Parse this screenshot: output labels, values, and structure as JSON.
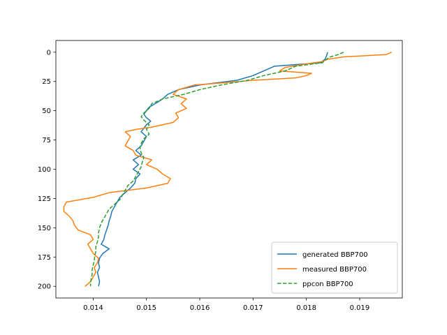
{
  "chart_data": {
    "type": "line",
    "title": "",
    "xlabel": "",
    "ylabel": "",
    "xlim": [
      0.0133,
      0.0198
    ],
    "ylim": [
      210,
      -10
    ],
    "y_inverted": true,
    "grid": false,
    "legend_position": "lower right",
    "x_ticks": [
      0.014,
      0.015,
      0.016,
      0.017,
      0.018,
      0.019
    ],
    "y_ticks": [
      0,
      25,
      50,
      75,
      100,
      125,
      150,
      175,
      200
    ],
    "series": [
      {
        "name": "generated BBP700",
        "color": "#1f77b4",
        "dashed": false,
        "points": [
          [
            0.0184,
            0
          ],
          [
            0.01838,
            3
          ],
          [
            0.01835,
            6
          ],
          [
            0.01827,
            9
          ],
          [
            0.0174,
            12
          ],
          [
            0.0172,
            16
          ],
          [
            0.017,
            20
          ],
          [
            0.0167,
            24
          ],
          [
            0.016,
            28
          ],
          [
            0.0156,
            32
          ],
          [
            0.0154,
            36
          ],
          [
            0.0153,
            40
          ],
          [
            0.0152,
            43
          ],
          [
            0.01505,
            47
          ],
          [
            0.015,
            50
          ],
          [
            0.01495,
            53
          ],
          [
            0.015,
            56
          ],
          [
            0.01508,
            59
          ],
          [
            0.015,
            62
          ],
          [
            0.01495,
            65
          ],
          [
            0.0149,
            68
          ],
          [
            0.015,
            72
          ],
          [
            0.01495,
            76
          ],
          [
            0.0149,
            80
          ],
          [
            0.0148,
            84
          ],
          [
            0.0149,
            88
          ],
          [
            0.01475,
            92
          ],
          [
            0.01485,
            96
          ],
          [
            0.01475,
            100
          ],
          [
            0.01488,
            104
          ],
          [
            0.0148,
            108
          ],
          [
            0.01478,
            112
          ],
          [
            0.0147,
            116
          ],
          [
            0.0146,
            120
          ],
          [
            0.0145,
            124
          ],
          [
            0.01445,
            128
          ],
          [
            0.0144,
            132
          ],
          [
            0.01435,
            136
          ],
          [
            0.01433,
            140
          ],
          [
            0.0143,
            144
          ],
          [
            0.01428,
            148
          ],
          [
            0.01425,
            152
          ],
          [
            0.01422,
            156
          ],
          [
            0.0142,
            160
          ],
          [
            0.01415,
            164
          ],
          [
            0.0143,
            168
          ],
          [
            0.01418,
            172
          ],
          [
            0.01412,
            176
          ],
          [
            0.0141,
            180
          ],
          [
            0.01412,
            184
          ],
          [
            0.01408,
            188
          ],
          [
            0.0141,
            192
          ],
          [
            0.01412,
            196
          ],
          [
            0.0141,
            200
          ]
        ]
      },
      {
        "name": "measured BBP700",
        "color": "#ff7f0e",
        "dashed": false,
        "points": [
          [
            0.0196,
            0
          ],
          [
            0.0195,
            2
          ],
          [
            0.0187,
            4
          ],
          [
            0.0184,
            6
          ],
          [
            0.0183,
            8
          ],
          [
            0.018,
            10
          ],
          [
            0.0176,
            13
          ],
          [
            0.0175,
            16
          ],
          [
            0.0181,
            18
          ],
          [
            0.018,
            20
          ],
          [
            0.0178,
            22
          ],
          [
            0.017,
            24
          ],
          [
            0.0165,
            26
          ],
          [
            0.0159,
            28
          ],
          [
            0.0156,
            32
          ],
          [
            0.0155,
            36
          ],
          [
            0.01575,
            40
          ],
          [
            0.01565,
            44
          ],
          [
            0.01575,
            48
          ],
          [
            0.01555,
            52
          ],
          [
            0.0156,
            56
          ],
          [
            0.0155,
            60
          ],
          [
            0.0153,
            62
          ],
          [
            0.0151,
            64
          ],
          [
            0.0148,
            66
          ],
          [
            0.0146,
            68
          ],
          [
            0.0147,
            72
          ],
          [
            0.01465,
            76
          ],
          [
            0.0146,
            80
          ],
          [
            0.01475,
            84
          ],
          [
            0.0148,
            88
          ],
          [
            0.0151,
            92
          ],
          [
            0.015,
            96
          ],
          [
            0.0152,
            100
          ],
          [
            0.0153,
            104
          ],
          [
            0.01545,
            108
          ],
          [
            0.0154,
            112
          ],
          [
            0.015,
            116
          ],
          [
            0.0143,
            120
          ],
          [
            0.014,
            124
          ],
          [
            0.0135,
            128
          ],
          [
            0.01345,
            132
          ],
          [
            0.01345,
            136
          ],
          [
            0.01355,
            140
          ],
          [
            0.01362,
            144
          ],
          [
            0.01365,
            148
          ],
          [
            0.01372,
            152
          ],
          [
            0.01395,
            156
          ],
          [
            0.014,
            160
          ],
          [
            0.0139,
            164
          ],
          [
            0.01395,
            168
          ],
          [
            0.014,
            172
          ],
          [
            0.0141,
            176
          ],
          [
            0.01408,
            180
          ],
          [
            0.01402,
            184
          ],
          [
            0.01405,
            188
          ],
          [
            0.014,
            192
          ],
          [
            0.01395,
            196
          ],
          [
            0.0139,
            198
          ],
          [
            0.01385,
            200
          ]
        ]
      },
      {
        "name": "ppcon BBP700",
        "color": "#2ca02c",
        "dashed": true,
        "points": [
          [
            0.0187,
            0
          ],
          [
            0.0186,
            2
          ],
          [
            0.01845,
            4
          ],
          [
            0.01838,
            6
          ],
          [
            0.0183,
            9
          ],
          [
            0.0178,
            12
          ],
          [
            0.0176,
            16
          ],
          [
            0.0172,
            20
          ],
          [
            0.0169,
            24
          ],
          [
            0.0164,
            28
          ],
          [
            0.016,
            32
          ],
          [
            0.0157,
            36
          ],
          [
            0.0153,
            40
          ],
          [
            0.0151,
            44
          ],
          [
            0.01505,
            48
          ],
          [
            0.01495,
            52
          ],
          [
            0.0149,
            55
          ],
          [
            0.01495,
            58
          ],
          [
            0.01505,
            62
          ],
          [
            0.015,
            66
          ],
          [
            0.01505,
            70
          ],
          [
            0.01495,
            74
          ],
          [
            0.0149,
            78
          ],
          [
            0.01488,
            82
          ],
          [
            0.0149,
            86
          ],
          [
            0.01495,
            90
          ],
          [
            0.01492,
            94
          ],
          [
            0.0149,
            98
          ],
          [
            0.01485,
            102
          ],
          [
            0.0148,
            106
          ],
          [
            0.01475,
            110
          ],
          [
            0.01465,
            114
          ],
          [
            0.0146,
            118
          ],
          [
            0.01455,
            122
          ],
          [
            0.0145,
            126
          ],
          [
            0.0144,
            130
          ],
          [
            0.0143,
            134
          ],
          [
            0.01425,
            138
          ],
          [
            0.0142,
            142
          ],
          [
            0.01415,
            146
          ],
          [
            0.01412,
            150
          ],
          [
            0.0141,
            154
          ],
          [
            0.0141,
            158
          ],
          [
            0.01408,
            162
          ],
          [
            0.01405,
            166
          ],
          [
            0.01405,
            170
          ],
          [
            0.01403,
            174
          ],
          [
            0.01402,
            178
          ],
          [
            0.014,
            182
          ],
          [
            0.01398,
            186
          ],
          [
            0.01398,
            190
          ],
          [
            0.01396,
            194
          ],
          [
            0.01395,
            198
          ],
          [
            0.01395,
            200
          ]
        ]
      }
    ]
  }
}
